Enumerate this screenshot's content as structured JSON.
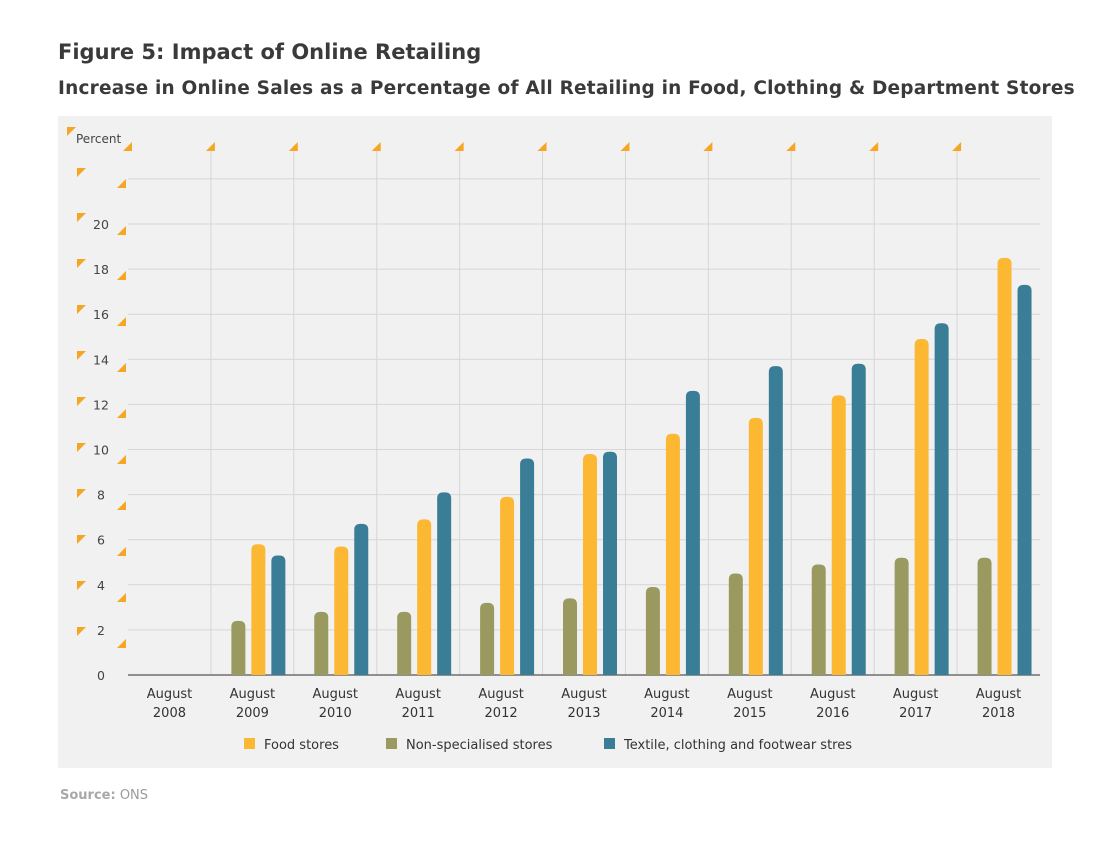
{
  "title": "Figure 5: Impact of Online Retailing",
  "subtitle": "Increase in Online Sales as a Percentage of All Retailing in Food, Clothing & Department Stores",
  "source": {
    "label": "Source:",
    "value": "ONS"
  },
  "colors": {
    "food": "#fcb833",
    "nonspec": "#9a9a60",
    "textile": "#3a7d96",
    "panel": "#f1f1f1",
    "grid": "#d6d6d6",
    "marker": "#f5a623"
  },
  "chart_data": {
    "type": "bar",
    "ylabel": "Percent",
    "ylim": [
      0,
      22
    ],
    "yticks": [
      0,
      2,
      4,
      6,
      8,
      10,
      12,
      14,
      16,
      18,
      20
    ],
    "grid": true,
    "legend_position": "bottom",
    "categories": [
      [
        "August",
        "2008"
      ],
      [
        "August",
        "2009"
      ],
      [
        "August",
        "2010"
      ],
      [
        "August",
        "2011"
      ],
      [
        "August",
        "2012"
      ],
      [
        "August",
        "2013"
      ],
      [
        "August",
        "2014"
      ],
      [
        "August",
        "2015"
      ],
      [
        "August",
        "2016"
      ],
      [
        "August",
        "2017"
      ],
      [
        "August",
        "2018"
      ]
    ],
    "series": [
      {
        "name": "Non-specialised stores",
        "key": "nonspec",
        "values": [
          0,
          2.4,
          2.8,
          2.8,
          3.2,
          3.4,
          3.9,
          4.5,
          4.9,
          5.2,
          5.2
        ]
      },
      {
        "name": "Food stores",
        "key": "food",
        "values": [
          0,
          5.8,
          5.7,
          6.9,
          7.9,
          9.8,
          10.7,
          11.4,
          12.4,
          14.9,
          18.5
        ]
      },
      {
        "name": "Textile, clothing and footwear stres",
        "key": "textile",
        "values": [
          0,
          5.3,
          6.7,
          8.1,
          9.6,
          9.9,
          12.6,
          13.7,
          13.8,
          15.6,
          17.3
        ]
      }
    ],
    "legend": [
      {
        "name": "Food stores",
        "key": "food"
      },
      {
        "name": "Non-specialised stores",
        "key": "nonspec"
      },
      {
        "name": "Textile, clothing and footwear stres",
        "key": "textile"
      }
    ]
  }
}
